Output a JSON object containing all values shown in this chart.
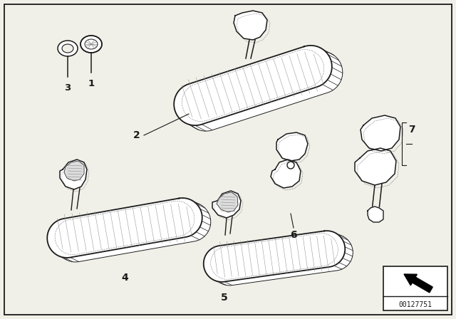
{
  "bg_color": "#f0f0e8",
  "line_color": "#1a1a1a",
  "part_number": "00127751",
  "label_fontsize": 9.5,
  "border_lw": 1.2,
  "fig_w": 6.4,
  "fig_h": 4.48,
  "dpi": 100
}
